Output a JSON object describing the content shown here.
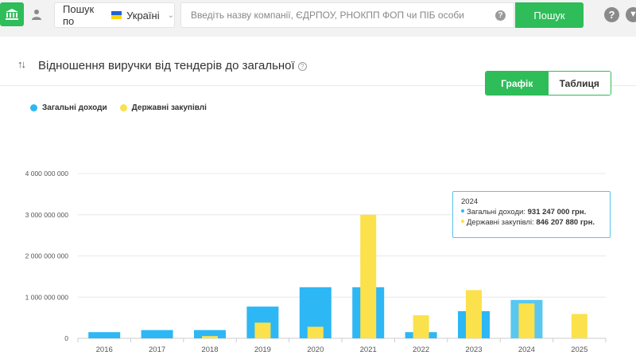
{
  "topbar": {
    "home_icon": "bank-icon",
    "user_icon": "user-icon",
    "scope_label": "Пошук по",
    "scope_value": "Україні",
    "search_placeholder": "Введіть назву компанії, ЄДРПОУ, РНОКПП ФОП чи ПІБ особи",
    "search_button": "Пошук",
    "help_icon": "question-icon",
    "download_icon": "download-icon"
  },
  "card": {
    "title": "Відношення виручки від тендерів до загальної",
    "toggle": {
      "chart_label": "Графік",
      "table_label": "Таблиця",
      "active": "chart"
    }
  },
  "colors": {
    "accent": "#2ebd59",
    "series_total": "#2db7f5",
    "series_gov": "#fbe14b",
    "series_total_hover": "#59c7f0"
  },
  "tooltip": {
    "year": "2024",
    "line1_label": "Загальні доходи: ",
    "line1_value": "931 247 000 грн.",
    "line2_label": "Державні закупівлі: ",
    "line2_value": "846 207 880 грн."
  },
  "chart_data": {
    "type": "bar",
    "title": "",
    "xlabel": "",
    "ylabel": "",
    "categories": [
      "2016",
      "2017",
      "2018",
      "2019",
      "2020",
      "2021",
      "2022",
      "2023",
      "2024",
      "2025"
    ],
    "series": [
      {
        "name": "Загальні доходи",
        "color": "#2db7f5",
        "values": [
          150000000,
          200000000,
          200000000,
          770000000,
          1240000000,
          1240000000,
          150000000,
          660000000,
          931247000,
          0
        ]
      },
      {
        "name": "Державні закупівлі",
        "color": "#fbe14b",
        "values": [
          0,
          0,
          55000000,
          380000000,
          280000000,
          3000000000,
          560000000,
          1170000000,
          846207880,
          590000000
        ]
      }
    ],
    "ylim": [
      0,
      4000000000
    ],
    "yticks": [
      "0",
      "1 000 000 000",
      "2 000 000 000",
      "3 000 000 000",
      "4 000 000 000"
    ],
    "grid": true,
    "legend": "top-left",
    "highlighted": "2024"
  }
}
